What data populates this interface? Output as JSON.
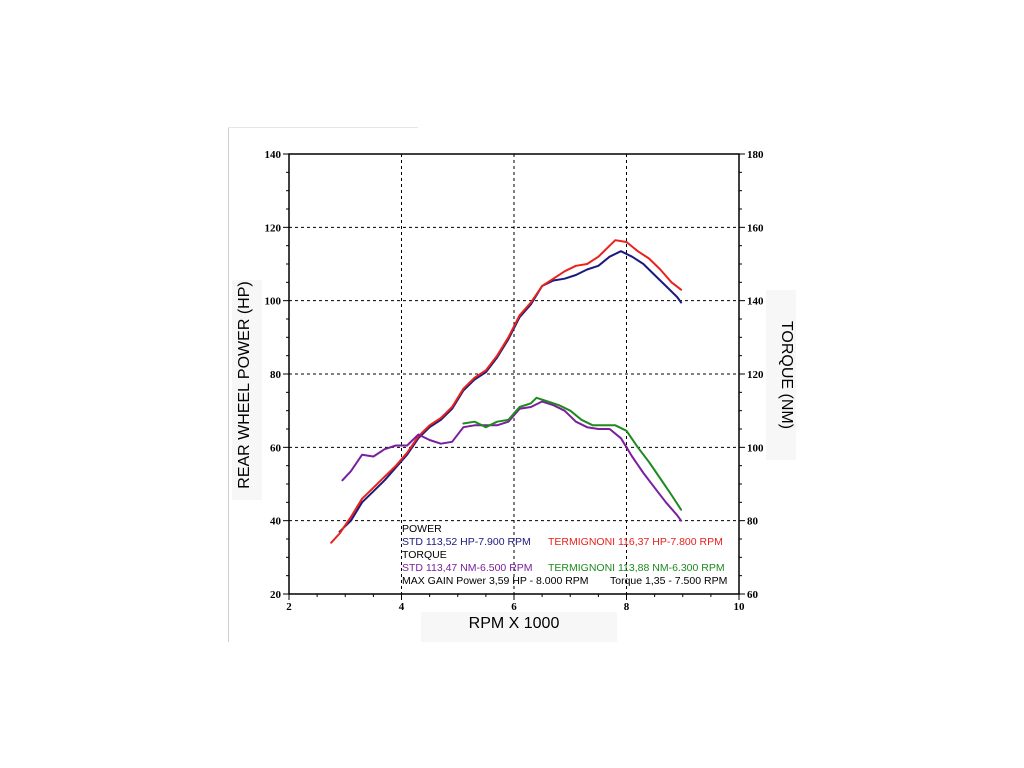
{
  "chart_data": {
    "type": "line",
    "x_label": "RPM X 1000",
    "y_label_left": "REAR WHEEL POWER (HP)",
    "y_label_right": "TORQUE (NM)",
    "x_range": [
      2,
      10
    ],
    "x_ticks": [
      2,
      4,
      6,
      8,
      10
    ],
    "y_left_range": [
      20,
      140
    ],
    "y_left_ticks": [
      20,
      40,
      60,
      80,
      100,
      120,
      140
    ],
    "y_right_range": [
      60,
      180
    ],
    "y_right_ticks": [
      60,
      80,
      100,
      120,
      140,
      160,
      180
    ],
    "grid": "dashed",
    "series": [
      {
        "name": "POWER STD",
        "axis": "left",
        "color": "#1a1a80",
        "points": [
          [
            2.9,
            37
          ],
          [
            3.1,
            40
          ],
          [
            3.3,
            45
          ],
          [
            3.5,
            48
          ],
          [
            3.7,
            51
          ],
          [
            3.9,
            54.5
          ],
          [
            4.1,
            58
          ],
          [
            4.3,
            62.5
          ],
          [
            4.5,
            65.5
          ],
          [
            4.7,
            67.5
          ],
          [
            4.9,
            70.5
          ],
          [
            5.1,
            75.5
          ],
          [
            5.3,
            78.5
          ],
          [
            5.5,
            80.5
          ],
          [
            5.7,
            84.5
          ],
          [
            5.9,
            89.5
          ],
          [
            6.1,
            95.5
          ],
          [
            6.3,
            99
          ],
          [
            6.5,
            104
          ],
          [
            6.7,
            105.5
          ],
          [
            6.9,
            106
          ],
          [
            7.1,
            107
          ],
          [
            7.3,
            108.5
          ],
          [
            7.5,
            109.5
          ],
          [
            7.7,
            112
          ],
          [
            7.9,
            113.5
          ],
          [
            8.1,
            112
          ],
          [
            8.3,
            110
          ],
          [
            8.5,
            107
          ],
          [
            8.7,
            104
          ],
          [
            8.9,
            101
          ],
          [
            8.97,
            99.5
          ]
        ]
      },
      {
        "name": "POWER TERMIGNONI",
        "axis": "left",
        "color": "#e8221c",
        "points": [
          [
            2.75,
            34
          ],
          [
            2.9,
            36.5
          ],
          [
            3.1,
            41
          ],
          [
            3.3,
            46
          ],
          [
            3.5,
            49
          ],
          [
            3.7,
            52
          ],
          [
            3.9,
            55
          ],
          [
            4.1,
            58.5
          ],
          [
            4.3,
            63
          ],
          [
            4.5,
            66
          ],
          [
            4.7,
            68
          ],
          [
            4.9,
            71
          ],
          [
            5.1,
            76
          ],
          [
            5.3,
            79
          ],
          [
            5.5,
            81
          ],
          [
            5.7,
            85
          ],
          [
            5.9,
            90
          ],
          [
            6.1,
            96
          ],
          [
            6.3,
            99.5
          ],
          [
            6.5,
            104
          ],
          [
            6.7,
            106
          ],
          [
            6.9,
            108
          ],
          [
            7.1,
            109.5
          ],
          [
            7.3,
            110
          ],
          [
            7.5,
            112
          ],
          [
            7.7,
            115
          ],
          [
            7.8,
            116.5
          ],
          [
            8.0,
            116
          ],
          [
            8.2,
            113.5
          ],
          [
            8.4,
            111.5
          ],
          [
            8.6,
            108.5
          ],
          [
            8.8,
            105
          ],
          [
            8.97,
            103
          ]
        ]
      },
      {
        "name": "TORQUE STD",
        "axis": "right",
        "color": "#7a1f9e",
        "points": [
          [
            2.95,
            91
          ],
          [
            3.1,
            93.5
          ],
          [
            3.3,
            98
          ],
          [
            3.5,
            97.5
          ],
          [
            3.7,
            99.5
          ],
          [
            3.9,
            100.5
          ],
          [
            4.1,
            100.5
          ],
          [
            4.3,
            103.5
          ],
          [
            4.5,
            102
          ],
          [
            4.7,
            101
          ],
          [
            4.9,
            101.5
          ],
          [
            5.1,
            105.5
          ],
          [
            5.3,
            106
          ],
          [
            5.5,
            106
          ],
          [
            5.7,
            106
          ],
          [
            5.9,
            107
          ],
          [
            6.1,
            110.5
          ],
          [
            6.3,
            111
          ],
          [
            6.5,
            112.5
          ],
          [
            6.7,
            111.5
          ],
          [
            6.9,
            110
          ],
          [
            7.1,
            107
          ],
          [
            7.3,
            105.5
          ],
          [
            7.5,
            105
          ],
          [
            7.7,
            105
          ],
          [
            7.9,
            102.5
          ],
          [
            8.1,
            97.5
          ],
          [
            8.3,
            93
          ],
          [
            8.5,
            89
          ],
          [
            8.7,
            85
          ],
          [
            8.9,
            81.5
          ],
          [
            8.97,
            80
          ]
        ]
      },
      {
        "name": "TORQUE TERMIGNONI",
        "axis": "right",
        "color": "#1f8a1f",
        "points": [
          [
            5.1,
            106.5
          ],
          [
            5.3,
            107
          ],
          [
            5.5,
            105.5
          ],
          [
            5.7,
            107
          ],
          [
            5.9,
            107.5
          ],
          [
            6.1,
            111
          ],
          [
            6.3,
            112
          ],
          [
            6.4,
            113.5
          ],
          [
            6.6,
            112.5
          ],
          [
            6.8,
            111.5
          ],
          [
            7.0,
            110
          ],
          [
            7.2,
            107.5
          ],
          [
            7.4,
            106
          ],
          [
            7.6,
            106
          ],
          [
            7.8,
            106
          ],
          [
            8.0,
            104.5
          ],
          [
            8.2,
            100
          ],
          [
            8.4,
            96
          ],
          [
            8.6,
            91.5
          ],
          [
            8.8,
            87
          ],
          [
            8.97,
            83
          ]
        ]
      }
    ]
  },
  "legend": {
    "power_title": "POWER",
    "power_std": "STD 113,52 HP-7.900 RPM",
    "power_term": "TERMIGNONI 116,37 HP-7.800 RPM",
    "torque_title": "TORQUE",
    "torque_std": "STD 113,47 NM-6.500 RPM",
    "torque_term": "TERMIGNONI 113,88 NM-6.300 RPM",
    "max_gain_power": "MAX GAIN Power 3,59 HP - 8.000 RPM",
    "max_gain_torque": "Torque 1,35 - 7.500 RPM"
  }
}
